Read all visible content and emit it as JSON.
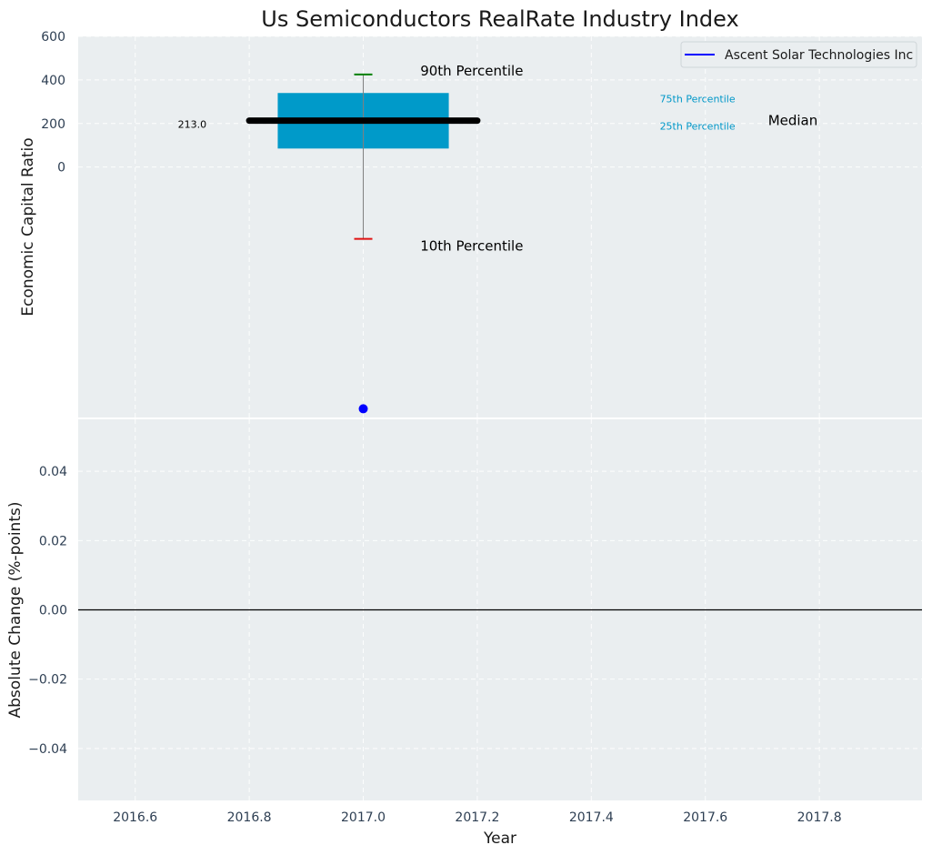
{
  "colors": {
    "panel_bg": "#eaeef0",
    "box_fill": "#009ac9",
    "median_line": "#000000",
    "whisker": "#808080",
    "cap_p90": "#008000",
    "cap_p10": "#e01010",
    "company_point": "#0000ff",
    "percentile_text": "#0097c8"
  },
  "chart_data": [
    {
      "type": "box",
      "title": "Us Semiconductors RealRate Industry Index",
      "ylabel": "Economic Capital Ratio",
      "ylim": [
        -1150,
        600
      ],
      "yticks": [
        0,
        200,
        400,
        600
      ],
      "ytick_labels": [
        "0",
        "200",
        "400",
        "600"
      ],
      "grid": true,
      "legend_position": "top-right",
      "box": {
        "x": 2017.0,
        "p10": -330,
        "p25": 85,
        "median": 213,
        "p75": 340,
        "p90": 425,
        "box_x_range": [
          2016.85,
          2017.15
        ],
        "median_x_range": [
          2016.8,
          2017.2
        ]
      },
      "series": [
        {
          "name": "Ascent Solar Technologies Inc",
          "x": [
            2017.0
          ],
          "y": [
            -1110
          ]
        }
      ],
      "annotations": {
        "median_value": "213.0",
        "p90": "90th Percentile",
        "p10": "10th Percentile",
        "p75": "75th Percentile",
        "p25": "25th Percentile",
        "median": "Median"
      }
    },
    {
      "type": "line",
      "ylabel": "Absolute Change (%-points)",
      "xlabel": "Year",
      "xlim": [
        2016.5,
        2017.98
      ],
      "ylim": [
        -0.055,
        0.055
      ],
      "xticks": [
        2016.6,
        2016.8,
        2017.0,
        2017.2,
        2017.4,
        2017.6,
        2017.8
      ],
      "xtick_labels": [
        "2016.6",
        "2016.8",
        "2017.0",
        "2017.2",
        "2017.4",
        "2017.6",
        "2017.8"
      ],
      "yticks": [
        0.04,
        0.02,
        0.0,
        -0.02,
        -0.04
      ],
      "ytick_labels": [
        "0.04",
        "0.02",
        "0.00",
        "−0.02",
        "−0.04"
      ],
      "grid": true,
      "series": [
        {
          "y": 0.0
        }
      ]
    }
  ]
}
